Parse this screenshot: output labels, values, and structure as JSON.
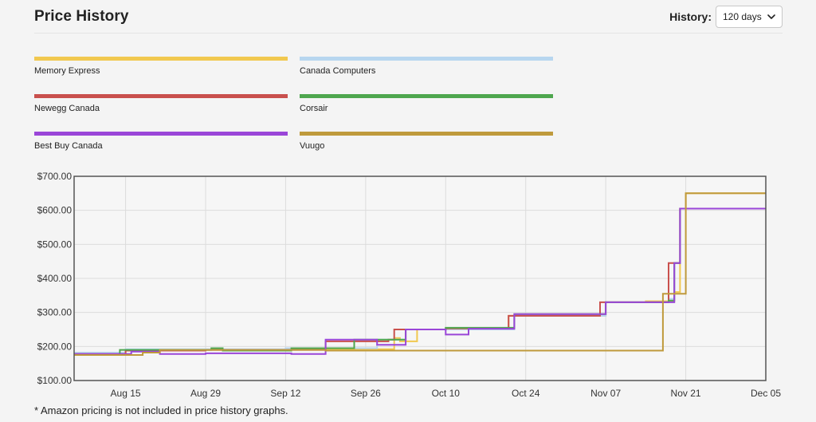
{
  "header": {
    "title": "Price History",
    "history_label": "History:",
    "history_value": "120 days"
  },
  "footnote": "* Amazon pricing is not included in price history graphs.",
  "colors": {
    "Memory Express": "#f1c84f",
    "Canada Computers": "#b7d6ef",
    "Newegg Canada": "#c9504d",
    "Corsair": "#4ea64e",
    "Best Buy Canada": "#9a46d8",
    "Vuugo": "#bf9a3c"
  },
  "chart_data": {
    "type": "line",
    "step": true,
    "title": "",
    "xlabel": "",
    "ylabel": "",
    "legend_position": "top",
    "grid": true,
    "x_range": [
      "Aug 06",
      "Dec 05"
    ],
    "ylim": [
      100,
      700
    ],
    "x_ticks": [
      "Aug 15",
      "Aug 29",
      "Sep 12",
      "Sep 26",
      "Oct 10",
      "Oct 24",
      "Nov 07",
      "Nov 21",
      "Dec 05"
    ],
    "y_ticks": [
      "$100.00",
      "$200.00",
      "$300.00",
      "$400.00",
      "$500.00",
      "$600.00",
      "$700.00"
    ],
    "series": [
      {
        "name": "Memory Express",
        "points": [
          [
            "Aug 06",
            180
          ],
          [
            "Aug 15",
            190
          ],
          [
            "Sep 12",
            192
          ],
          [
            "Oct 01",
            225
          ],
          [
            "Oct 02",
            215
          ],
          [
            "Oct 05",
            250
          ],
          [
            "Oct 10",
            250
          ],
          [
            "Oct 21",
            253
          ],
          [
            "Oct 21",
            290
          ],
          [
            "Nov 07",
            330
          ],
          [
            "Nov 14",
            333
          ],
          [
            "Nov 19",
            360
          ],
          [
            "Nov 20",
            605
          ],
          [
            "Nov 21",
            650
          ],
          [
            "Dec 05",
            650
          ]
        ]
      },
      {
        "name": "Canada Computers",
        "points": [
          [
            "Aug 06",
            182
          ],
          [
            "Aug 15",
            192
          ],
          [
            "Sep 12",
            195
          ],
          [
            "Sep 28",
            220
          ],
          [
            "Oct 03",
            250
          ],
          [
            "Oct 10",
            250
          ],
          [
            "Oct 22",
            290
          ],
          [
            "Nov 07",
            330
          ],
          [
            "Nov 18",
            340
          ],
          [
            "Nov 19",
            445
          ],
          [
            "Nov 20",
            605
          ],
          [
            "Dec 05",
            605
          ]
        ]
      },
      {
        "name": "Newegg Canada",
        "points": [
          [
            "Aug 06",
            178
          ],
          [
            "Aug 15",
            188
          ],
          [
            "Aug 22",
            188
          ],
          [
            "Aug 29",
            190
          ],
          [
            "Sep 12",
            190
          ],
          [
            "Sep 19",
            215
          ],
          [
            "Sep 30",
            220
          ],
          [
            "Oct 01",
            250
          ],
          [
            "Oct 10",
            253
          ],
          [
            "Oct 21",
            290
          ],
          [
            "Nov 06",
            330
          ],
          [
            "Nov 18",
            335
          ],
          [
            "Nov 18",
            445
          ],
          [
            "Nov 20",
            605
          ],
          [
            "Dec 05",
            605
          ]
        ]
      },
      {
        "name": "Corsair",
        "points": [
          [
            "Aug 06",
            176
          ],
          [
            "Aug 14",
            190
          ],
          [
            "Aug 30",
            195
          ],
          [
            "Sep 01",
            188
          ],
          [
            "Sep 13",
            195
          ],
          [
            "Sep 18",
            195
          ],
          [
            "Sep 24",
            220
          ],
          [
            "Oct 03",
            250
          ],
          [
            "Oct 10",
            255
          ],
          [
            "Oct 22",
            295
          ],
          [
            "Nov 07",
            330
          ],
          [
            "Nov 18",
            335
          ],
          [
            "Nov 19",
            445
          ],
          [
            "Nov 20",
            605
          ],
          [
            "Dec 05",
            605
          ]
        ]
      },
      {
        "name": "Best Buy Canada",
        "points": [
          [
            "Aug 06",
            178
          ],
          [
            "Aug 16",
            185
          ],
          [
            "Aug 21",
            178
          ],
          [
            "Aug 29",
            180
          ],
          [
            "Aug 31",
            180
          ],
          [
            "Sep 01",
            180
          ],
          [
            "Sep 13",
            178
          ],
          [
            "Sep 19",
            220
          ],
          [
            "Sep 28",
            205
          ],
          [
            "Oct 03",
            250
          ],
          [
            "Oct 10",
            235
          ],
          [
            "Oct 14",
            252
          ],
          [
            "Oct 22",
            295
          ],
          [
            "Nov 07",
            330
          ],
          [
            "Nov 19",
            335
          ],
          [
            "Nov 19",
            445
          ],
          [
            "Nov 20",
            605
          ],
          [
            "Dec 05",
            605
          ]
        ]
      },
      {
        "name": "Vuugo",
        "points": [
          [
            "Aug 06",
            175
          ],
          [
            "Aug 18",
            182
          ],
          [
            "Aug 21",
            190
          ],
          [
            "Sep 19",
            188
          ],
          [
            "Nov 15",
            188
          ],
          [
            "Nov 17",
            355
          ],
          [
            "Nov 21",
            650
          ],
          [
            "Dec 05",
            650
          ]
        ]
      }
    ]
  }
}
